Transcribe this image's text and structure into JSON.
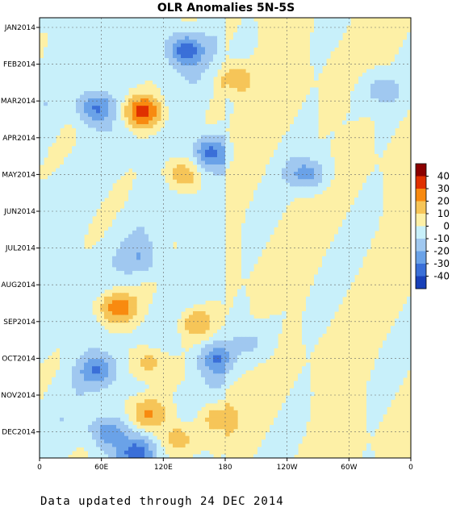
{
  "chart_data": {
    "type": "heatmap",
    "title": "OLR Anomalies 5N-5S",
    "x_ticks": [
      "0",
      "60E",
      "120E",
      "180",
      "120W",
      "60W",
      "0"
    ],
    "y_ticks": [
      "JAN2014",
      "FEB2014",
      "MAR2014",
      "APR2014",
      "MAY2014",
      "JUN2014",
      "JUL2014",
      "AUG2014",
      "SEP2014",
      "OCT2014",
      "NOV2014",
      "DEC2014"
    ],
    "colorbar": {
      "levels": [
        "40",
        "30",
        "20",
        "10",
        "0",
        "-10",
        "-20",
        "-30",
        "-40"
      ],
      "colors": [
        "#8b0000",
        "#e03000",
        "#f88a10",
        "#f6c558",
        "#fdf0a6",
        "#c8f0fa",
        "#a0c8f0",
        "#6aa2e8",
        "#3a6fd8",
        "#1840b8"
      ]
    },
    "grid": true,
    "features": [
      {
        "month": 2.3,
        "lon": 100,
        "value": 40
      },
      {
        "month": 2.2,
        "lon": 55,
        "value": -30
      },
      {
        "month": 1.4,
        "lon": 190,
        "value": 20
      },
      {
        "month": 0.6,
        "lon": 140,
        "value": -35
      },
      {
        "month": 3.4,
        "lon": 165,
        "value": -30
      },
      {
        "month": 4.0,
        "lon": 140,
        "value": 20
      },
      {
        "month": 4.0,
        "lon": 260,
        "value": -25
      },
      {
        "month": 7.6,
        "lon": 75,
        "value": 30
      },
      {
        "month": 8.0,
        "lon": 150,
        "value": 20
      },
      {
        "month": 9.3,
        "lon": 55,
        "value": -25
      },
      {
        "month": 9.1,
        "lon": 105,
        "value": 20
      },
      {
        "month": 9.0,
        "lon": 170,
        "value": -25
      },
      {
        "month": 10.5,
        "lon": 105,
        "value": 25
      },
      {
        "month": 10.6,
        "lon": 170,
        "value": 20
      },
      {
        "month": 11.0,
        "lon": 65,
        "value": -25
      },
      {
        "month": 11.6,
        "lon": 95,
        "value": -30
      },
      {
        "month": 11.2,
        "lon": 135,
        "value": 20
      },
      {
        "month": 6.3,
        "lon": 100,
        "value": -15
      },
      {
        "month": 8.6,
        "lon": 205,
        "value": -12
      },
      {
        "month": 1.7,
        "lon": 330,
        "value": -15
      }
    ]
  },
  "footer": "Data updated through 24 DEC 2014"
}
